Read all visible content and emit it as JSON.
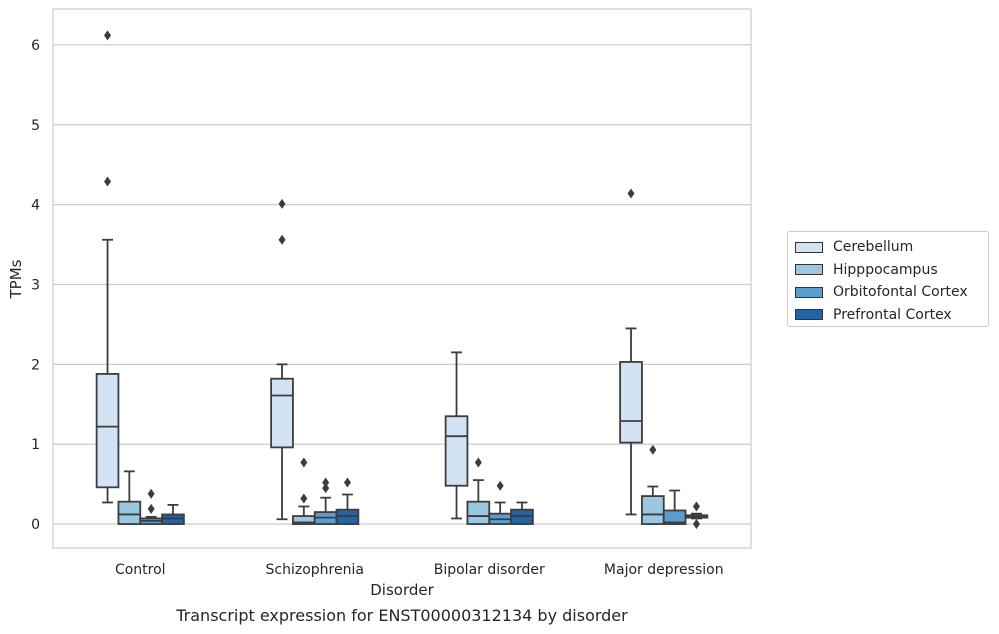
{
  "caption": "Transcript expression for ENST00000312134 by disorder",
  "chart_data": {
    "type": "box",
    "xlabel": "Disorder",
    "ylabel": "TPMs",
    "ylim": [
      -0.3,
      6.45
    ],
    "yticks": [
      0,
      1,
      2,
      3,
      4,
      5,
      6
    ],
    "grid": true,
    "legend_position": "right",
    "categories": [
      "Control",
      "Schizophrenia",
      "Bipolar disorder",
      "Major depression"
    ],
    "series": [
      {
        "name": "Cerebellum",
        "color": "#d2e3f3",
        "boxes": [
          {
            "whislo": 0.27,
            "q1": 0.46,
            "med": 1.22,
            "q3": 1.88,
            "whishi": 3.56,
            "fliers": [
              4.29,
              6.12
            ]
          },
          {
            "whislo": 0.06,
            "q1": 0.96,
            "med": 1.61,
            "q3": 1.82,
            "whishi": 2.0,
            "fliers": [
              3.56,
              4.01
            ]
          },
          {
            "whislo": 0.07,
            "q1": 0.48,
            "med": 1.1,
            "q3": 1.35,
            "whishi": 2.15,
            "fliers": []
          },
          {
            "whislo": 0.12,
            "q1": 1.02,
            "med": 1.29,
            "q3": 2.03,
            "whishi": 2.45,
            "fliers": [
              4.14
            ]
          }
        ]
      },
      {
        "name": "Hipppocampus",
        "color": "#9ac8e0",
        "boxes": [
          {
            "whislo": 0.0,
            "q1": 0.0,
            "med": 0.12,
            "q3": 0.28,
            "whishi": 0.66,
            "fliers": []
          },
          {
            "whislo": 0.0,
            "q1": 0.0,
            "med": 0.02,
            "q3": 0.1,
            "whishi": 0.22,
            "fliers": [
              0.32,
              0.77
            ]
          },
          {
            "whislo": 0.0,
            "q1": 0.0,
            "med": 0.1,
            "q3": 0.28,
            "whishi": 0.55,
            "fliers": [
              0.77
            ]
          },
          {
            "whislo": 0.0,
            "q1": 0.0,
            "med": 0.12,
            "q3": 0.35,
            "whishi": 0.47,
            "fliers": [
              0.93
            ]
          }
        ]
      },
      {
        "name": "Orbitofontal Cortex",
        "color": "#5a9ecf",
        "boxes": [
          {
            "whislo": 0.0,
            "q1": 0.0,
            "med": 0.04,
            "q3": 0.07,
            "whishi": 0.09,
            "fliers": [
              0.19,
              0.38
            ]
          },
          {
            "whislo": 0.0,
            "q1": 0.0,
            "med": 0.08,
            "q3": 0.15,
            "whishi": 0.33,
            "fliers": [
              0.45,
              0.52
            ]
          },
          {
            "whislo": 0.0,
            "q1": 0.0,
            "med": 0.06,
            "q3": 0.13,
            "whishi": 0.27,
            "fliers": [
              0.48
            ]
          },
          {
            "whislo": 0.0,
            "q1": 0.0,
            "med": 0.02,
            "q3": 0.17,
            "whishi": 0.42,
            "fliers": []
          }
        ]
      },
      {
        "name": "Prefrontal Cortex",
        "color": "#2464a6",
        "boxes": [
          {
            "whislo": 0.0,
            "q1": 0.0,
            "med": 0.07,
            "q3": 0.12,
            "whishi": 0.24,
            "fliers": []
          },
          {
            "whislo": 0.0,
            "q1": 0.0,
            "med": 0.1,
            "q3": 0.18,
            "whishi": 0.37,
            "fliers": [
              0.52
            ]
          },
          {
            "whislo": 0.0,
            "q1": 0.0,
            "med": 0.1,
            "q3": 0.18,
            "whishi": 0.27,
            "fliers": []
          },
          {
            "whislo": 0.07,
            "q1": 0.08,
            "med": 0.09,
            "q3": 0.11,
            "whishi": 0.13,
            "fliers": [
              0.22,
              0.0
            ]
          }
        ]
      }
    ]
  }
}
